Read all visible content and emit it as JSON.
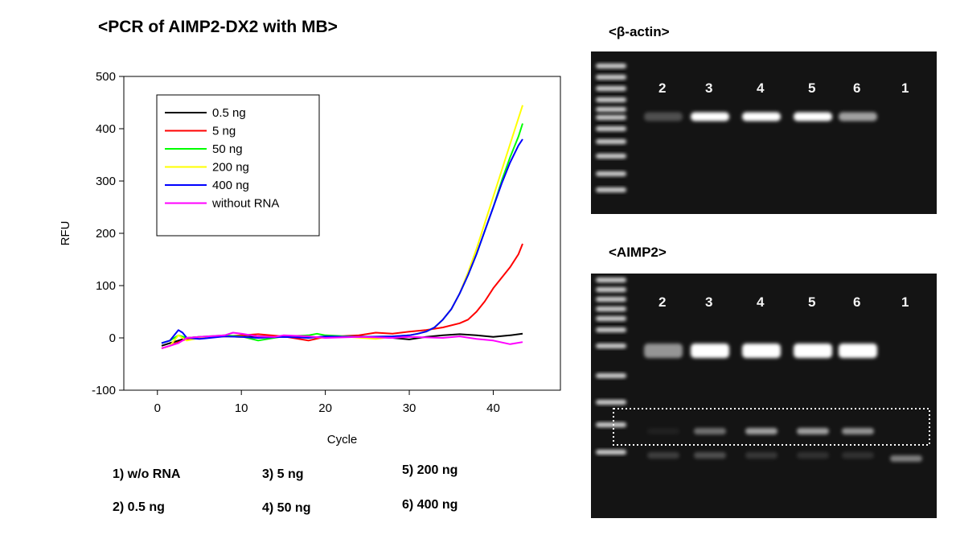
{
  "title": "<PCR of AIMP2-DX2 with MB>",
  "chart_data": {
    "type": "line",
    "xlabel": "Cycle",
    "ylabel": "RFU",
    "xlim": [
      -4,
      48
    ],
    "ylim": [
      -100,
      500
    ],
    "xticks": [
      0,
      10,
      20,
      30,
      40
    ],
    "yticks": [
      -100,
      0,
      100,
      200,
      300,
      400,
      500
    ],
    "grid": false,
    "legend_position": "top-left (inside plot)",
    "series": [
      {
        "name": "0.5 ng",
        "color": "#000000",
        "x": [
          0.5,
          1.5,
          2.5,
          3.5,
          5,
          8,
          10,
          12,
          15,
          18,
          20,
          24,
          28,
          30,
          32,
          34,
          36,
          38,
          40,
          42,
          43.5
        ],
        "y": [
          -15,
          -10,
          -5,
          0,
          2,
          3,
          2,
          3,
          2,
          1,
          2,
          3,
          0,
          -3,
          2,
          5,
          7,
          5,
          2,
          5,
          8
        ]
      },
      {
        "name": "5 ng",
        "color": "#ff0000",
        "x": [
          0.5,
          1.5,
          2.5,
          3.5,
          5,
          8,
          10,
          12,
          15,
          18,
          20,
          24,
          26,
          28,
          30,
          32,
          34,
          36,
          37,
          38,
          39,
          40,
          41,
          42,
          43,
          43.5
        ],
        "y": [
          -20,
          -15,
          -8,
          -2,
          0,
          3,
          5,
          7,
          3,
          -5,
          2,
          5,
          10,
          8,
          12,
          15,
          20,
          28,
          35,
          50,
          70,
          95,
          115,
          135,
          160,
          180
        ]
      },
      {
        "name": "50 ng",
        "color": "#00ff00",
        "x": [
          0.5,
          1.5,
          2.5,
          3.5,
          5,
          8,
          10,
          12,
          15,
          18,
          19,
          20,
          24,
          28,
          30,
          31,
          32,
          33,
          34,
          35,
          36,
          37,
          38,
          39,
          40,
          41,
          42,
          43,
          43.5
        ],
        "y": [
          -10,
          -5,
          5,
          0,
          2,
          5,
          3,
          -5,
          3,
          5,
          8,
          5,
          2,
          3,
          5,
          8,
          12,
          20,
          35,
          55,
          85,
          120,
          160,
          205,
          250,
          300,
          345,
          385,
          410
        ]
      },
      {
        "name": "200 ng",
        "color": "#ffff00",
        "x": [
          0.5,
          1.5,
          2.5,
          3.5,
          5,
          8,
          10,
          12,
          15,
          18,
          20,
          22,
          26,
          28,
          30,
          31,
          32,
          33,
          34,
          35,
          36,
          37,
          38,
          39,
          40,
          41,
          42,
          43,
          43.5
        ],
        "y": [
          -20,
          -15,
          5,
          -5,
          0,
          3,
          2,
          0,
          3,
          2,
          0,
          3,
          -2,
          2,
          5,
          8,
          12,
          20,
          35,
          55,
          85,
          125,
          170,
          220,
          270,
          320,
          370,
          420,
          445
        ]
      },
      {
        "name": "400 ng",
        "color": "#0000ff",
        "x": [
          0.5,
          1.5,
          2.5,
          3,
          3.5,
          5,
          8,
          10,
          12,
          15,
          18,
          20,
          24,
          28,
          30,
          31,
          32,
          33,
          34,
          35,
          36,
          37,
          38,
          39,
          40,
          41,
          42,
          43,
          43.5
        ],
        "y": [
          -10,
          -5,
          15,
          10,
          0,
          -2,
          3,
          2,
          0,
          2,
          0,
          3,
          2,
          3,
          5,
          8,
          12,
          20,
          35,
          55,
          85,
          120,
          160,
          205,
          250,
          295,
          335,
          368,
          380
        ]
      },
      {
        "name": "without RNA",
        "color": "#ff00ff",
        "x": [
          0.5,
          1.5,
          2.5,
          3.5,
          5,
          8,
          9,
          10,
          12,
          14,
          15,
          18,
          20,
          24,
          28,
          30,
          34,
          36,
          38,
          40,
          42,
          43.5
        ],
        "y": [
          -20,
          -15,
          -10,
          0,
          2,
          5,
          10,
          8,
          3,
          2,
          5,
          3,
          0,
          2,
          0,
          2,
          0,
          3,
          -2,
          -5,
          -12,
          -8
        ]
      }
    ]
  },
  "sample_key": [
    [
      "1) w/o RNA",
      "3) 5 ng",
      "5) 200 ng"
    ],
    [
      "2) 0.5 ng",
      "4) 50 ng",
      "6) 400 ng"
    ]
  ],
  "gels": [
    {
      "title": "<β-actin>",
      "lanes": [
        "2",
        "3",
        "4",
        "5",
        "6",
        "1"
      ],
      "band_intensity": [
        0.25,
        1.0,
        1.0,
        1.0,
        0.6,
        0.0
      ]
    },
    {
      "title": "<AIMP2>",
      "lanes": [
        "2",
        "3",
        "4",
        "5",
        "6",
        "1"
      ],
      "band_intensity": [
        0.55,
        1.0,
        1.0,
        1.0,
        1.0,
        0.0
      ],
      "lower_band_intensity": [
        0.05,
        0.4,
        0.6,
        0.6,
        0.55,
        0.0
      ],
      "highlight": "dotted box around lower band"
    }
  ]
}
